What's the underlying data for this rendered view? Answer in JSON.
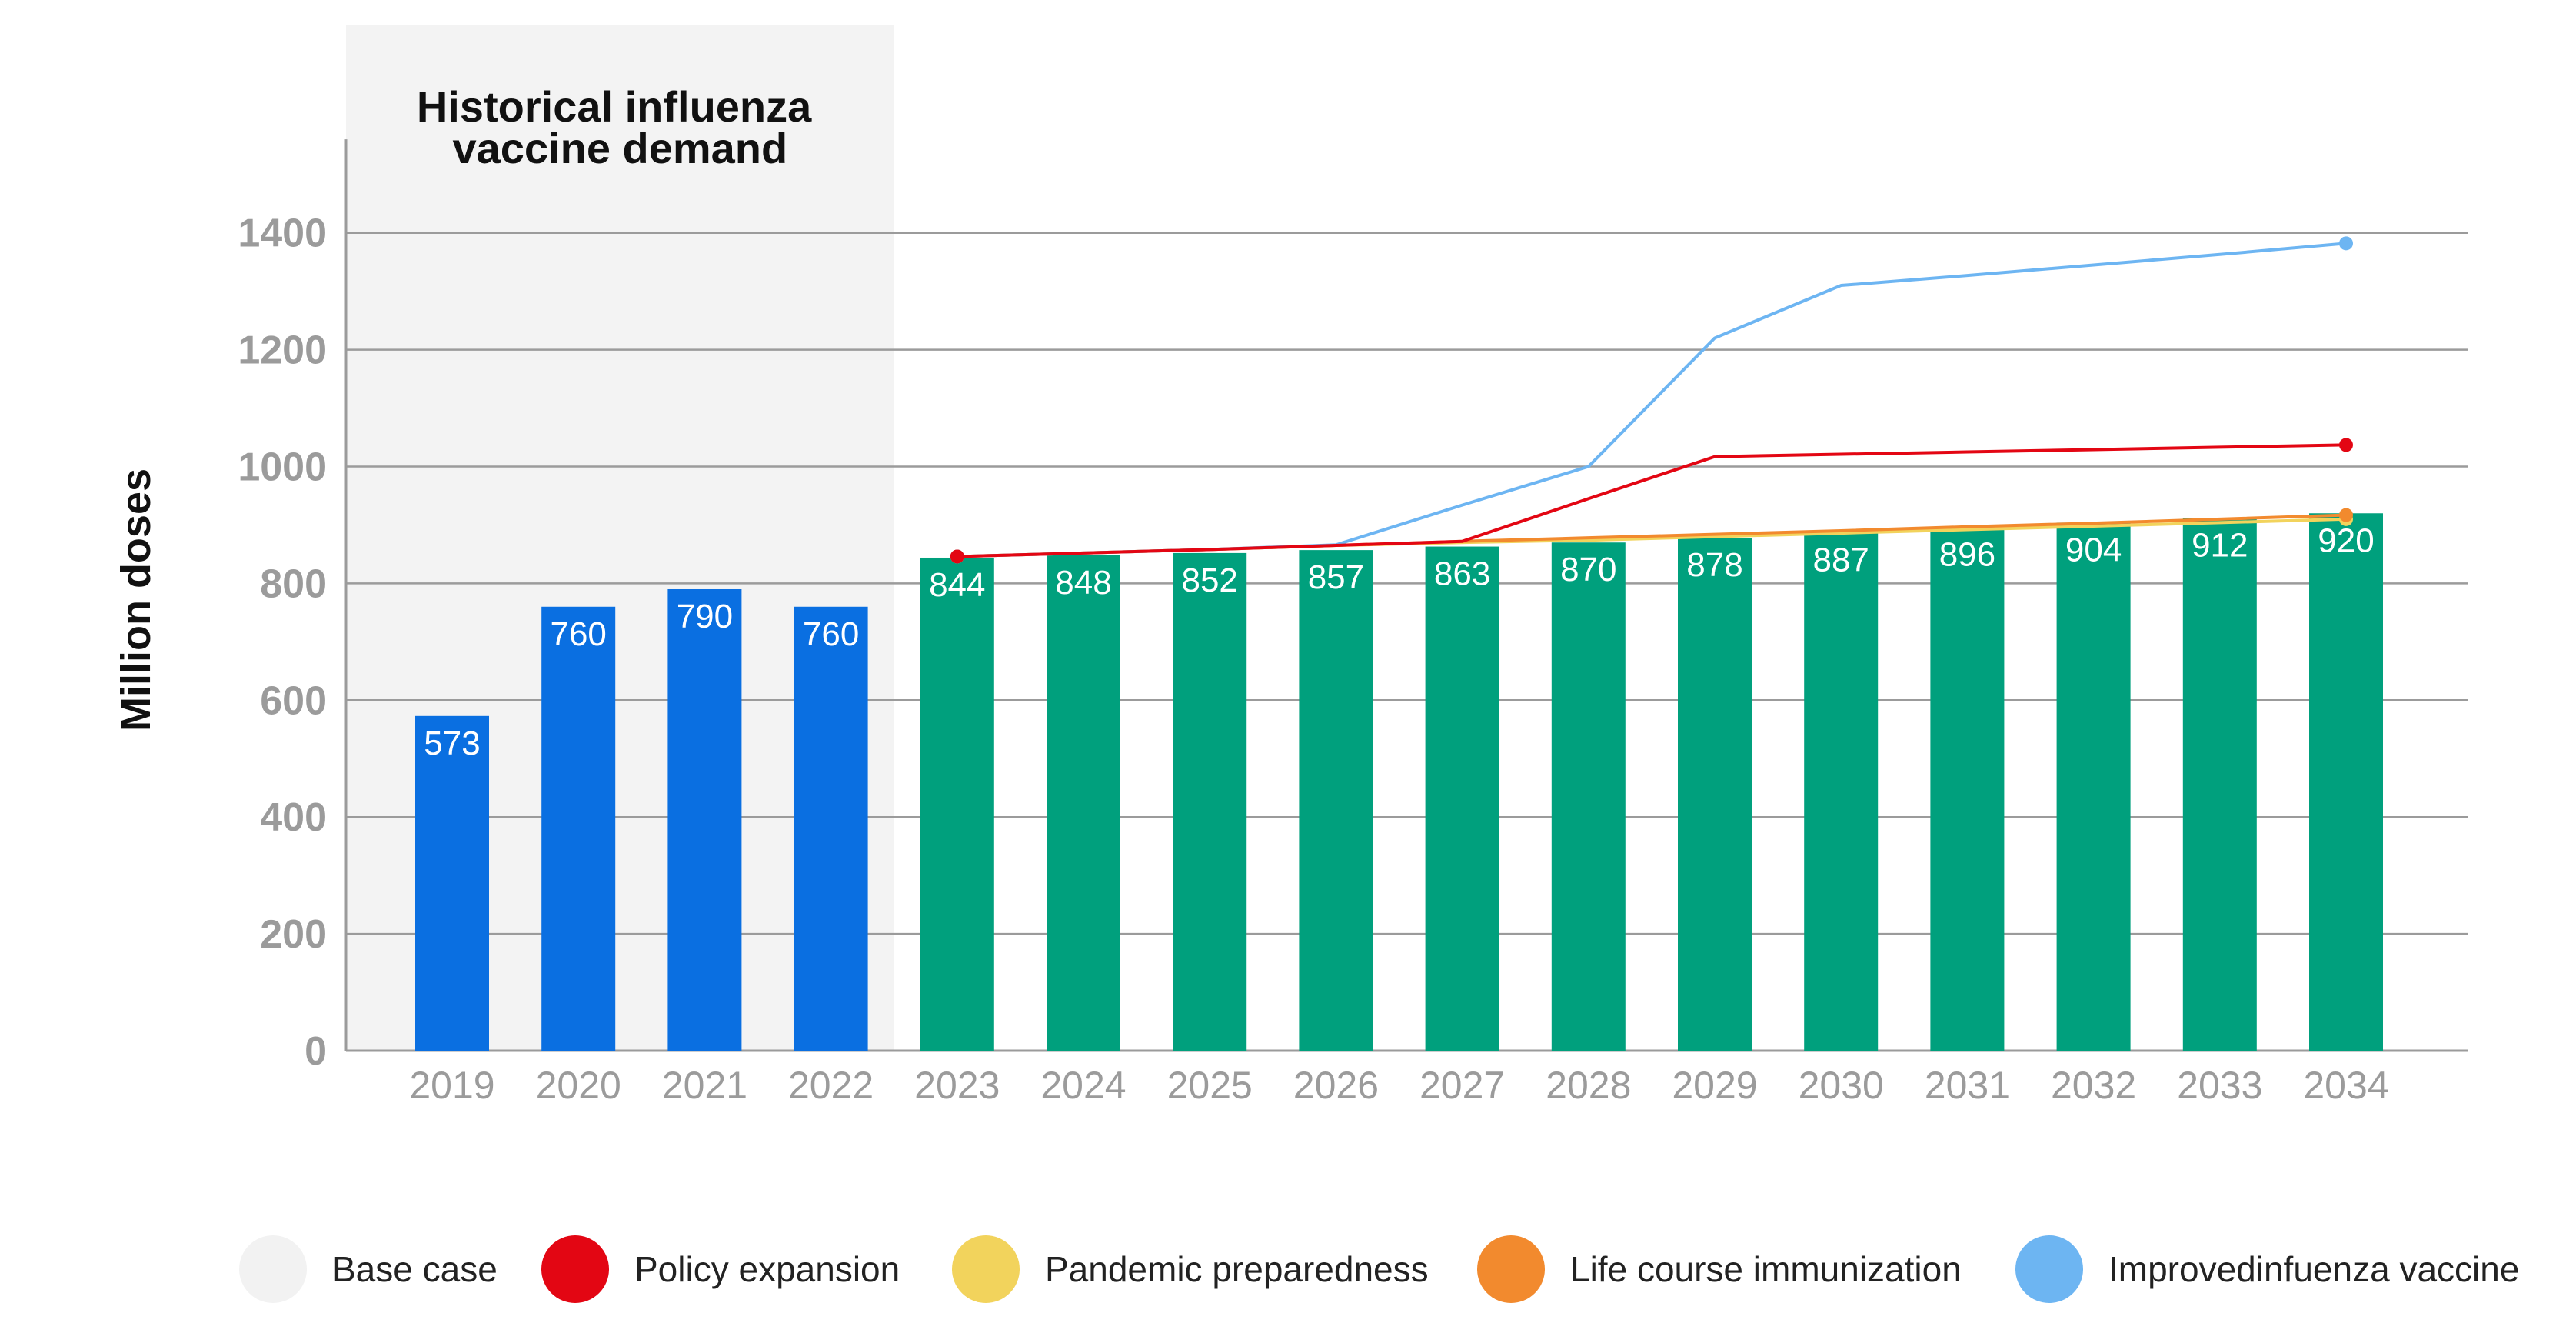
{
  "chart_data": {
    "type": "bar",
    "ylabel": "Million doses",
    "ylim": [
      0,
      1560
    ],
    "yticks": [
      0,
      200,
      400,
      600,
      800,
      1000,
      1200,
      1400
    ],
    "grid": true,
    "historical_region_title_lines": [
      "Historical influenza",
      "vaccine demand"
    ],
    "historical_categories": [
      "2019",
      "2020",
      "2021",
      "2022"
    ],
    "categories": [
      "2019",
      "2020",
      "2021",
      "2022",
      "2023",
      "2024",
      "2025",
      "2026",
      "2027",
      "2028",
      "2029",
      "2030",
      "2031",
      "2032",
      "2033",
      "2034"
    ],
    "values": [
      573,
      760,
      790,
      760,
      844,
      848,
      852,
      857,
      863,
      870,
      878,
      887,
      896,
      904,
      912,
      920
    ],
    "bar_colors": {
      "historical": "#0a6fe1",
      "projected": "#00a07d"
    },
    "series": [
      {
        "name": "Pandemic preparedness",
        "color": "#f2d35c",
        "x": [
          "2023",
          "2024",
          "2025",
          "2026",
          "2027",
          "2028",
          "2029",
          "2030",
          "2031",
          "2032",
          "2033",
          "2034"
        ],
        "values": [
          846,
          852,
          858,
          865,
          870,
          874,
          880,
          886,
          892,
          898,
          904,
          910
        ]
      },
      {
        "name": "Life course immunization",
        "color": "#f28a2e",
        "x": [
          "2023",
          "2024",
          "2025",
          "2026",
          "2027",
          "2028",
          "2029",
          "2030",
          "2031",
          "2032",
          "2033",
          "2034"
        ],
        "values": [
          846,
          852,
          858,
          865,
          872,
          878,
          884,
          890,
          897,
          903,
          910,
          917
        ]
      },
      {
        "name": "Improvedinfuenza vaccine",
        "color": "#6db5f2",
        "x": [
          "2023",
          "2024",
          "2025",
          "2026",
          "2027",
          "2028",
          "2029",
          "2030",
          "2031",
          "2032",
          "2033",
          "2034"
        ],
        "values": [
          846,
          852,
          858,
          866,
          934,
          1000,
          1220,
          1310,
          1327,
          1345,
          1363,
          1382
        ]
      },
      {
        "name": "Policy expansion",
        "color": "#e30613",
        "x": [
          "2023",
          "2024",
          "2025",
          "2026",
          "2027",
          "2028",
          "2029",
          "2030",
          "2031",
          "2032",
          "2033",
          "2034"
        ],
        "values": [
          846,
          852,
          858,
          865,
          872,
          945,
          1017,
          1021,
          1025,
          1029,
          1033,
          1037
        ]
      }
    ],
    "legend": {
      "position": "bottom",
      "items": [
        {
          "name": "Base case",
          "color": "#f2f2f2"
        },
        {
          "name": "Policy expansion",
          "color": "#e30613"
        },
        {
          "name": "Pandemic preparedness",
          "color": "#f2d35c"
        },
        {
          "name": "Life course immunization",
          "color": "#f28a2e"
        },
        {
          "name": "Improvedinfuenza vaccine",
          "color": "#6db5f2"
        }
      ]
    }
  }
}
